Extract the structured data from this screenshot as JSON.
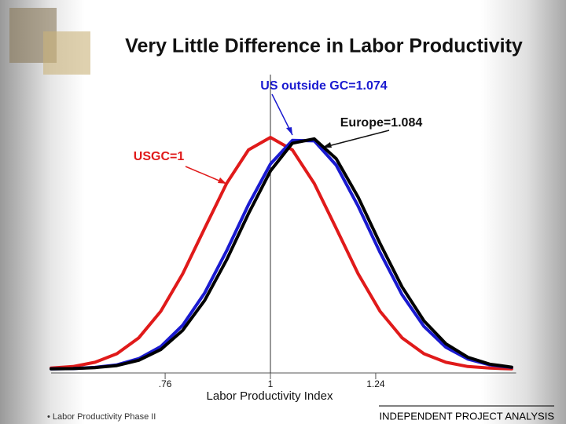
{
  "chart_data": {
    "type": "line",
    "title": "Very Little Difference in Labor Productivity",
    "x_label": "Labor Productivity Index",
    "x": [
      0.5,
      0.55,
      0.6,
      0.65,
      0.7,
      0.75,
      0.8,
      0.85,
      0.9,
      0.95,
      1.0,
      1.05,
      1.1,
      1.15,
      1.2,
      1.25,
      1.3,
      1.35,
      1.4,
      1.45,
      1.5,
      1.55
    ],
    "series": [
      {
        "name": "USGC=1",
        "color": "#e01a1a",
        "values": [
          0.004,
          0.011,
          0.029,
          0.066,
          0.135,
          0.249,
          0.411,
          0.607,
          0.801,
          0.946,
          1.0,
          0.946,
          0.801,
          0.607,
          0.411,
          0.249,
          0.135,
          0.066,
          0.029,
          0.011,
          0.004,
          0.001
        ]
      },
      {
        "name": "US outside GC=1.074",
        "color": "#1a1ad0",
        "values": [
          0.001,
          0.002,
          0.007,
          0.018,
          0.045,
          0.097,
          0.189,
          0.328,
          0.51,
          0.71,
          0.885,
          0.987,
          0.985,
          0.88,
          0.703,
          0.503,
          0.321,
          0.184,
          0.094,
          0.043,
          0.018,
          0.007
        ]
      },
      {
        "name": "Europe=1.084",
        "color": "#000000",
        "values": [
          0.001,
          0.002,
          0.006,
          0.015,
          0.038,
          0.084,
          0.167,
          0.296,
          0.471,
          0.671,
          0.855,
          0.975,
          0.994,
          0.908,
          0.742,
          0.542,
          0.355,
          0.208,
          0.109,
          0.051,
          0.021,
          0.008
        ]
      }
    ],
    "xlim": [
      0.5,
      1.56
    ],
    "ylim": [
      0,
      1
    ],
    "xticks": [
      {
        "value": 0.76,
        "label": ".76"
      },
      1,
      1.24
    ],
    "grid": false
  },
  "footer": {
    "left": "• Labor Productivity Phase II",
    "right": "INDEPENDENT PROJECT ANALYSIS"
  }
}
